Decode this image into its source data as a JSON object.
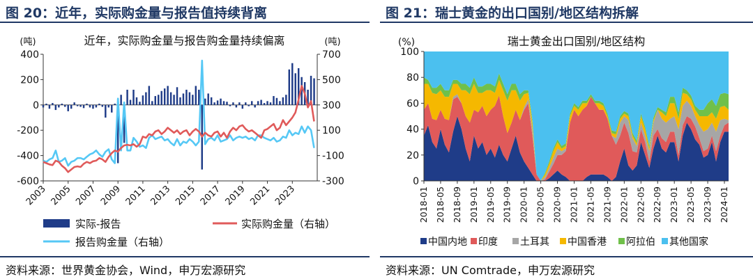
{
  "left": {
    "fig_title": "图 20：近年，实际购金量与报告值持续背离",
    "source": "资料来源：世界黄金协会，Wind，申万宏源研究",
    "chart_data": {
      "type": "bar+line",
      "title": "近年，实际购金量与报告购金量持续偏离",
      "left_unit": "(吨)",
      "right_unit": "(吨)",
      "ylim_left": [
        -600,
        400
      ],
      "yticks_left": [
        -600,
        -400,
        -200,
        0,
        200,
        400
      ],
      "ylim_right": [
        -300,
        700
      ],
      "yticks_right": [
        -300,
        -100,
        100,
        300,
        500,
        700
      ],
      "x_ticks": [
        "2003",
        "2005",
        "2007",
        "2009",
        "2011",
        "2013",
        "2015",
        "2017",
        "2019",
        "2021",
        "2023"
      ],
      "x_range": [
        2003,
        2025
      ],
      "x": [
        2003.0,
        2003.25,
        2003.5,
        2003.75,
        2004.0,
        2004.25,
        2004.5,
        2004.75,
        2005.0,
        2005.25,
        2005.5,
        2005.75,
        2006.0,
        2006.25,
        2006.5,
        2006.75,
        2007.0,
        2007.25,
        2007.5,
        2007.75,
        2008.0,
        2008.25,
        2008.5,
        2008.75,
        2009.0,
        2009.25,
        2009.5,
        2009.75,
        2010.0,
        2010.25,
        2010.5,
        2010.75,
        2011.0,
        2011.25,
        2011.5,
        2011.75,
        2012.0,
        2012.25,
        2012.5,
        2012.75,
        2013.0,
        2013.25,
        2013.5,
        2013.75,
        2014.0,
        2014.25,
        2014.5,
        2014.75,
        2015.0,
        2015.25,
        2015.5,
        2015.75,
        2016.0,
        2016.25,
        2016.5,
        2016.75,
        2017.0,
        2017.25,
        2017.5,
        2017.75,
        2018.0,
        2018.25,
        2018.5,
        2018.75,
        2019.0,
        2019.25,
        2019.5,
        2019.75,
        2020.0,
        2020.25,
        2020.5,
        2020.75,
        2021.0,
        2021.25,
        2021.5,
        2021.75,
        2022.0,
        2022.25,
        2022.5,
        2022.75,
        2023.0,
        2023.25,
        2023.5,
        2023.75,
        2024.0,
        2024.25,
        2024.5,
        2024.75
      ],
      "series": [
        {
          "name": "实际-报告",
          "type": "bar",
          "axis": "left",
          "color": "#1f3c88",
          "values": [
            -20,
            10,
            -30,
            15,
            -40,
            -20,
            10,
            -15,
            -50,
            -30,
            20,
            -10,
            -15,
            -25,
            10,
            -20,
            -30,
            -20,
            10,
            -15,
            -100,
            -20,
            -60,
            10,
            -460,
            80,
            -300,
            120,
            40,
            120,
            60,
            25,
            75,
            100,
            150,
            30,
            70,
            80,
            110,
            130,
            150,
            100,
            80,
            140,
            60,
            90,
            120,
            100,
            80,
            150,
            120,
            -510,
            50,
            90,
            60,
            20,
            35,
            50,
            30,
            25,
            -10,
            20,
            -20,
            20,
            -30,
            20,
            -10,
            30,
            -20,
            30,
            40,
            15,
            30,
            20,
            70,
            55,
            30,
            60,
            80,
            280,
            330,
            250,
            290,
            220,
            180,
            120,
            230,
            210
          ]
        },
        {
          "name": "实际购金量（右轴）",
          "type": "line",
          "axis": "right",
          "color": "#e05a5a",
          "values": [
            -150,
            -160,
            -170,
            -175,
            -140,
            -150,
            -180,
            -200,
            -230,
            -210,
            -190,
            -185,
            -190,
            -165,
            -150,
            -160,
            -145,
            -140,
            -120,
            -130,
            -150,
            -110,
            -80,
            -60,
            -70,
            -40,
            -20,
            -15,
            -20,
            -10,
            -30,
            -10,
            50,
            40,
            70,
            60,
            90,
            100,
            70,
            90,
            120,
            100,
            80,
            100,
            70,
            90,
            100,
            60,
            90,
            110,
            90,
            50,
            80,
            60,
            50,
            80,
            90,
            50,
            80,
            40,
            90,
            120,
            100,
            130,
            140,
            110,
            90,
            100,
            80,
            60,
            40,
            100,
            110,
            130,
            150,
            100,
            120,
            180,
            140,
            170,
            200,
            240,
            340,
            450,
            390,
            280,
            330,
            170
          ]
        },
        {
          "name": "报告购金量（右轴）",
          "type": "line",
          "axis": "right",
          "color": "#56c8f5",
          "values": [
            -140,
            -150,
            -130,
            -120,
            -60,
            -150,
            -140,
            -120,
            -180,
            -150,
            -140,
            -120,
            -120,
            -130,
            -110,
            -90,
            -80,
            -60,
            -90,
            -110,
            -70,
            -50,
            -130,
            -160,
            350,
            -60,
            320,
            -60,
            -60,
            40,
            10,
            -30,
            -20,
            -40,
            40,
            60,
            30,
            40,
            50,
            20,
            30,
            0,
            -20,
            30,
            -20,
            10,
            0,
            30,
            10,
            -20,
            10,
            650,
            -10,
            30,
            40,
            20,
            60,
            10,
            20,
            30,
            60,
            20,
            40,
            50,
            40,
            50,
            30,
            40,
            20,
            60,
            60,
            40,
            30,
            20,
            40,
            10,
            20,
            50,
            40,
            100,
            60,
            80,
            70,
            130,
            80,
            130,
            100,
            -40
          ]
        }
      ]
    },
    "legend": {
      "bar": "实际-报告",
      "red": "实际购金量（右轴）",
      "cyan": "报告购金量（右轴）"
    }
  },
  "right": {
    "fig_title": "图 21：瑞士黄金的出口国别/地区结构拆解",
    "source": "资料来源：UN Comtrade，申万宏源研究",
    "chart_data": {
      "type": "area",
      "stacked": true,
      "title": "瑞士黄金出口国别/地区结构",
      "y_unit": "(%)",
      "ylim": [
        0,
        100
      ],
      "yticks": [
        0,
        20,
        40,
        60,
        80,
        100
      ],
      "x_ticks": [
        "2018-01",
        "2018-05",
        "2018-09",
        "2019-01",
        "2019-05",
        "2019-09",
        "2020-01",
        "2020-05",
        "2020-09",
        "2021-01",
        "2021-05",
        "2021-09",
        "2022-01",
        "2022-05",
        "2022-09",
        "2023-01",
        "2023-05",
        "2023-09",
        "2024-01"
      ],
      "x": [
        "2018-01",
        "2018-02",
        "2018-03",
        "2018-04",
        "2018-05",
        "2018-06",
        "2018-07",
        "2018-08",
        "2018-09",
        "2018-10",
        "2018-11",
        "2018-12",
        "2019-01",
        "2019-02",
        "2019-03",
        "2019-04",
        "2019-05",
        "2019-06",
        "2019-07",
        "2019-08",
        "2019-09",
        "2019-10",
        "2019-11",
        "2019-12",
        "2020-01",
        "2020-02",
        "2020-03",
        "2020-04",
        "2020-05",
        "2020-06",
        "2020-07",
        "2020-08",
        "2020-09",
        "2020-10",
        "2020-11",
        "2020-12",
        "2021-01",
        "2021-02",
        "2021-03",
        "2021-04",
        "2021-05",
        "2021-06",
        "2021-07",
        "2021-08",
        "2021-09",
        "2021-10",
        "2021-11",
        "2021-12",
        "2022-01",
        "2022-02",
        "2022-03",
        "2022-04",
        "2022-05",
        "2022-06",
        "2022-07",
        "2022-08",
        "2022-09",
        "2022-10",
        "2022-11",
        "2022-12",
        "2023-01",
        "2023-02",
        "2023-03",
        "2023-04",
        "2023-05",
        "2023-06",
        "2023-07",
        "2023-08",
        "2023-09",
        "2023-10",
        "2023-11",
        "2023-12",
        "2024-01",
        "2024-02"
      ],
      "series": [
        {
          "name": "中国内地",
          "color": "#1f3c88",
          "values": [
            35,
            43,
            30,
            25,
            40,
            28,
            22,
            38,
            50,
            40,
            25,
            15,
            35,
            25,
            30,
            20,
            25,
            18,
            28,
            20,
            15,
            25,
            35,
            22,
            15,
            10,
            5,
            0,
            0,
            0,
            2,
            5,
            8,
            5,
            3,
            0,
            0,
            0,
            0,
            3,
            5,
            5,
            5,
            5,
            3,
            0,
            3,
            15,
            25,
            12,
            8,
            12,
            30,
            20,
            10,
            25,
            35,
            25,
            22,
            30,
            30,
            15,
            35,
            45,
            40,
            32,
            28,
            18,
            20,
            30,
            15,
            30,
            38,
            38
          ]
        },
        {
          "name": "印度",
          "color": "#e05a5a",
          "values": [
            20,
            17,
            18,
            22,
            15,
            20,
            25,
            25,
            15,
            20,
            25,
            30,
            20,
            28,
            28,
            30,
            30,
            40,
            38,
            30,
            22,
            20,
            20,
            25,
            40,
            50,
            30,
            5,
            0,
            1,
            5,
            8,
            12,
            15,
            20,
            45,
            55,
            50,
            55,
            55,
            60,
            55,
            50,
            50,
            45,
            35,
            25,
            20,
            20,
            25,
            15,
            10,
            10,
            10,
            5,
            10,
            5,
            8,
            8,
            8,
            8,
            5,
            8,
            5,
            8,
            10,
            5,
            5,
            5,
            5,
            8,
            5,
            5,
            7
          ]
        },
        {
          "name": "土耳其",
          "color": "#a6a6a6",
          "values": [
            0,
            0,
            0,
            0,
            0,
            0,
            0,
            2,
            2,
            0,
            0,
            0,
            0,
            0,
            0,
            0,
            0,
            0,
            0,
            0,
            0,
            0,
            0,
            0,
            2,
            3,
            5,
            0,
            0,
            2,
            3,
            5,
            5,
            3,
            2,
            0,
            0,
            0,
            0,
            0,
            0,
            0,
            0,
            0,
            0,
            0,
            5,
            10,
            5,
            10,
            10,
            5,
            5,
            5,
            8,
            10,
            15,
            15,
            15,
            10,
            12,
            20,
            15,
            12,
            10,
            8,
            10,
            15,
            15,
            10,
            15,
            12,
            5,
            2
          ]
        },
        {
          "name": "中国香港",
          "color": "#f5b800",
          "values": [
            20,
            15,
            20,
            20,
            15,
            17,
            18,
            10,
            8,
            10,
            20,
            22,
            20,
            15,
            10,
            20,
            15,
            10,
            12,
            20,
            25,
            25,
            15,
            15,
            10,
            5,
            5,
            0,
            0,
            2,
            3,
            5,
            5,
            2,
            2,
            5,
            3,
            5,
            5,
            2,
            0,
            0,
            5,
            3,
            2,
            2,
            3,
            3,
            2,
            3,
            2,
            2,
            5,
            5,
            2,
            2,
            0,
            5,
            5,
            12,
            10,
            8,
            10,
            5,
            5,
            5,
            7,
            12,
            10,
            8,
            10,
            10,
            10,
            8
          ]
        },
        {
          "name": "阿拉伯",
          "color": "#70c04a",
          "values": [
            5,
            3,
            4,
            5,
            5,
            5,
            5,
            3,
            3,
            5,
            5,
            5,
            5,
            5,
            5,
            5,
            5,
            5,
            5,
            5,
            5,
            5,
            5,
            5,
            3,
            2,
            2,
            0,
            0,
            1,
            2,
            2,
            2,
            2,
            2,
            2,
            2,
            2,
            2,
            2,
            2,
            2,
            2,
            2,
            2,
            2,
            2,
            2,
            2,
            2,
            2,
            2,
            2,
            2,
            2,
            2,
            2,
            2,
            3,
            5,
            5,
            5,
            4,
            3,
            3,
            3,
            5,
            5,
            10,
            10,
            10,
            10,
            10,
            12
          ]
        },
        {
          "name": "其他国家",
          "color": "#4bc0ef",
          "values": [
            20,
            22,
            28,
            28,
            25,
            30,
            30,
            22,
            22,
            25,
            25,
            28,
            20,
            27,
            27,
            25,
            25,
            27,
            17,
            25,
            33,
            25,
            25,
            33,
            30,
            30,
            53,
            95,
            100,
            94,
            85,
            75,
            68,
            73,
            71,
            48,
            40,
            43,
            38,
            38,
            33,
            38,
            38,
            40,
            48,
            61,
            62,
            50,
            46,
            48,
            63,
            69,
            48,
            58,
            73,
            51,
            43,
            45,
            47,
            35,
            35,
            47,
            28,
            30,
            34,
            42,
            45,
            45,
            40,
            37,
            42,
            33,
            32,
            33
          ]
        }
      ]
    },
    "legend": [
      "中国内地",
      "印度",
      "土耳其",
      "中国香港",
      "阿拉伯",
      "其他国家"
    ]
  }
}
